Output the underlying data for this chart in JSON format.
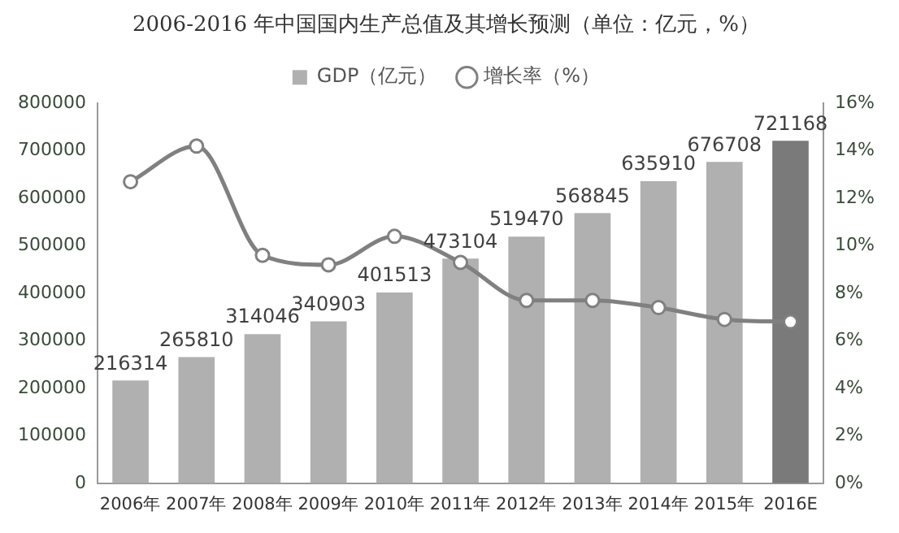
{
  "chart_data": {
    "type": "bar",
    "title": "2006-2016 年中国国内生产总值及其增长预测（单位：亿元，%）",
    "categories": [
      "2006年",
      "2007年",
      "2008年",
      "2009年",
      "2010年",
      "2011年",
      "2012年",
      "2013年",
      "2014年",
      "2015年",
      "2016E"
    ],
    "series": [
      {
        "name": "GDP（亿元）",
        "color": "#b0b0b0",
        "colors": [
          "#b0b0b0",
          "#b0b0b0",
          "#b0b0b0",
          "#b0b0b0",
          "#b0b0b0",
          "#b0b0b0",
          "#b0b0b0",
          "#b0b0b0",
          "#b0b0b0",
          "#b0b0b0",
          "#7a7a7a"
        ],
        "values": [
          216314,
          265810,
          314046,
          340903,
          401513,
          473104,
          519470,
          568845,
          635910,
          676708,
          721168
        ],
        "value_labels": [
          "216314",
          "265810",
          "314046",
          "340903",
          "401513",
          "473104",
          "519470",
          "568845",
          "635910",
          "676708",
          "721168"
        ]
      },
      {
        "name": "增长率（%）",
        "type": "line",
        "axis": "y2",
        "color": "#808080",
        "marker": "circle",
        "values": [
          12.7,
          14.2,
          9.6,
          9.2,
          10.4,
          9.3,
          7.7,
          7.7,
          7.4,
          6.9,
          6.8
        ]
      }
    ],
    "ylim": [
      0,
      800000
    ],
    "yticks": [
      0,
      100000,
      200000,
      300000,
      400000,
      500000,
      600000,
      700000,
      800000
    ],
    "y2lim": [
      0,
      16
    ],
    "y2ticks": [
      {
        "value": 0,
        "label": "0%"
      },
      {
        "value": 2,
        "label": "2%"
      },
      {
        "value": 4,
        "label": "4%"
      },
      {
        "value": 6,
        "label": "6%"
      },
      {
        "value": 8,
        "label": "8%"
      },
      {
        "value": 10,
        "label": "10%"
      },
      {
        "value": 12,
        "label": "12%"
      },
      {
        "value": 14,
        "label": "14%"
      },
      {
        "value": 16,
        "label": "16%"
      }
    ],
    "grid": false,
    "legend": "top"
  }
}
